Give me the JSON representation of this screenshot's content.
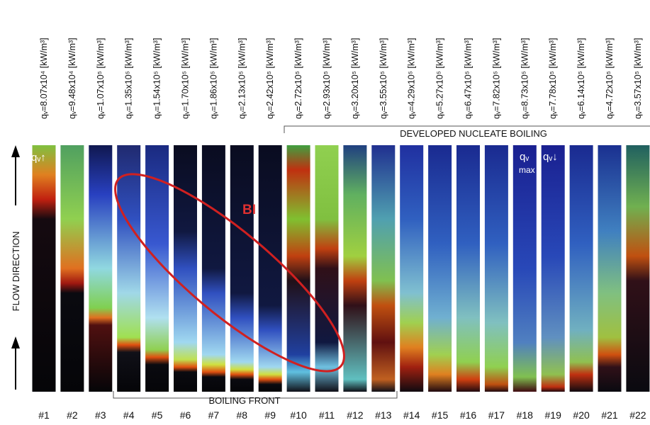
{
  "figure": {
    "heat_flux_labels": [
      "qᵥ=8.07x10⁴ [kW/m³]",
      "qᵥ=9.48x10⁴ [kW/m³]",
      "qᵥ=1.07x10⁵ [kW/m³]",
      "qᵥ=1.35x10⁵ [kW/m³]",
      "qᵥ=1.54x10⁵ [kW/m³]",
      "qᵥ=1.70x10⁵ [kW/m³]",
      "qᵥ=1.86x10⁵ [kW/m³]",
      "qᵥ=2.13x10⁵ [kW/m³]",
      "qᵥ=2.42x10⁵ [kW/m³]",
      "qᵥ=2.72x10⁵ [kW/m³]",
      "qᵥ=2.93x10⁵ [kW/m³]",
      "qᵥ=3.20x10⁵ [kW/m³]",
      "qᵥ=3.55x10⁵ [kW/m³]",
      "qᵥ=4.29x10⁵ [kW/m³]",
      "qᵥ=5.27x10⁵ [kW/m³]",
      "qᵥ=6.47x10⁵ [kW/m³]",
      "qᵥ=7.82x10⁵ [kW/m³]",
      "qᵥ=8.73x10⁵ [kW/m³]",
      "qᵥ=7.78x10⁵ [kW/m³]",
      "qᵥ=6.14x10⁵ [kW/m³]",
      "qᵥ=4.72x10⁵ [kW/m³]",
      "qᵥ=3.57x10⁵ [kW/m³]"
    ],
    "image_labels": [
      "#1",
      "#2",
      "#3",
      "#4",
      "#5",
      "#6",
      "#7",
      "#8",
      "#9",
      "#10",
      "#11",
      "#12",
      "#13",
      "#14",
      "#15",
      "#16",
      "#17",
      "#18",
      "#19",
      "#20",
      "#21",
      "#22"
    ],
    "flow_direction": "FLOW DIRECTION",
    "developed_nucleate_boiling": "DEVELOPED NUCLEATE BOILING",
    "boiling_front": "BOILING FRONT",
    "boiling_instability": "BI",
    "annotations": {
      "increasing": "qᵥ↑",
      "maximum_symbol": "qᵥ",
      "maximum_sub": "max",
      "decreasing": "qᵥ↓"
    }
  }
}
